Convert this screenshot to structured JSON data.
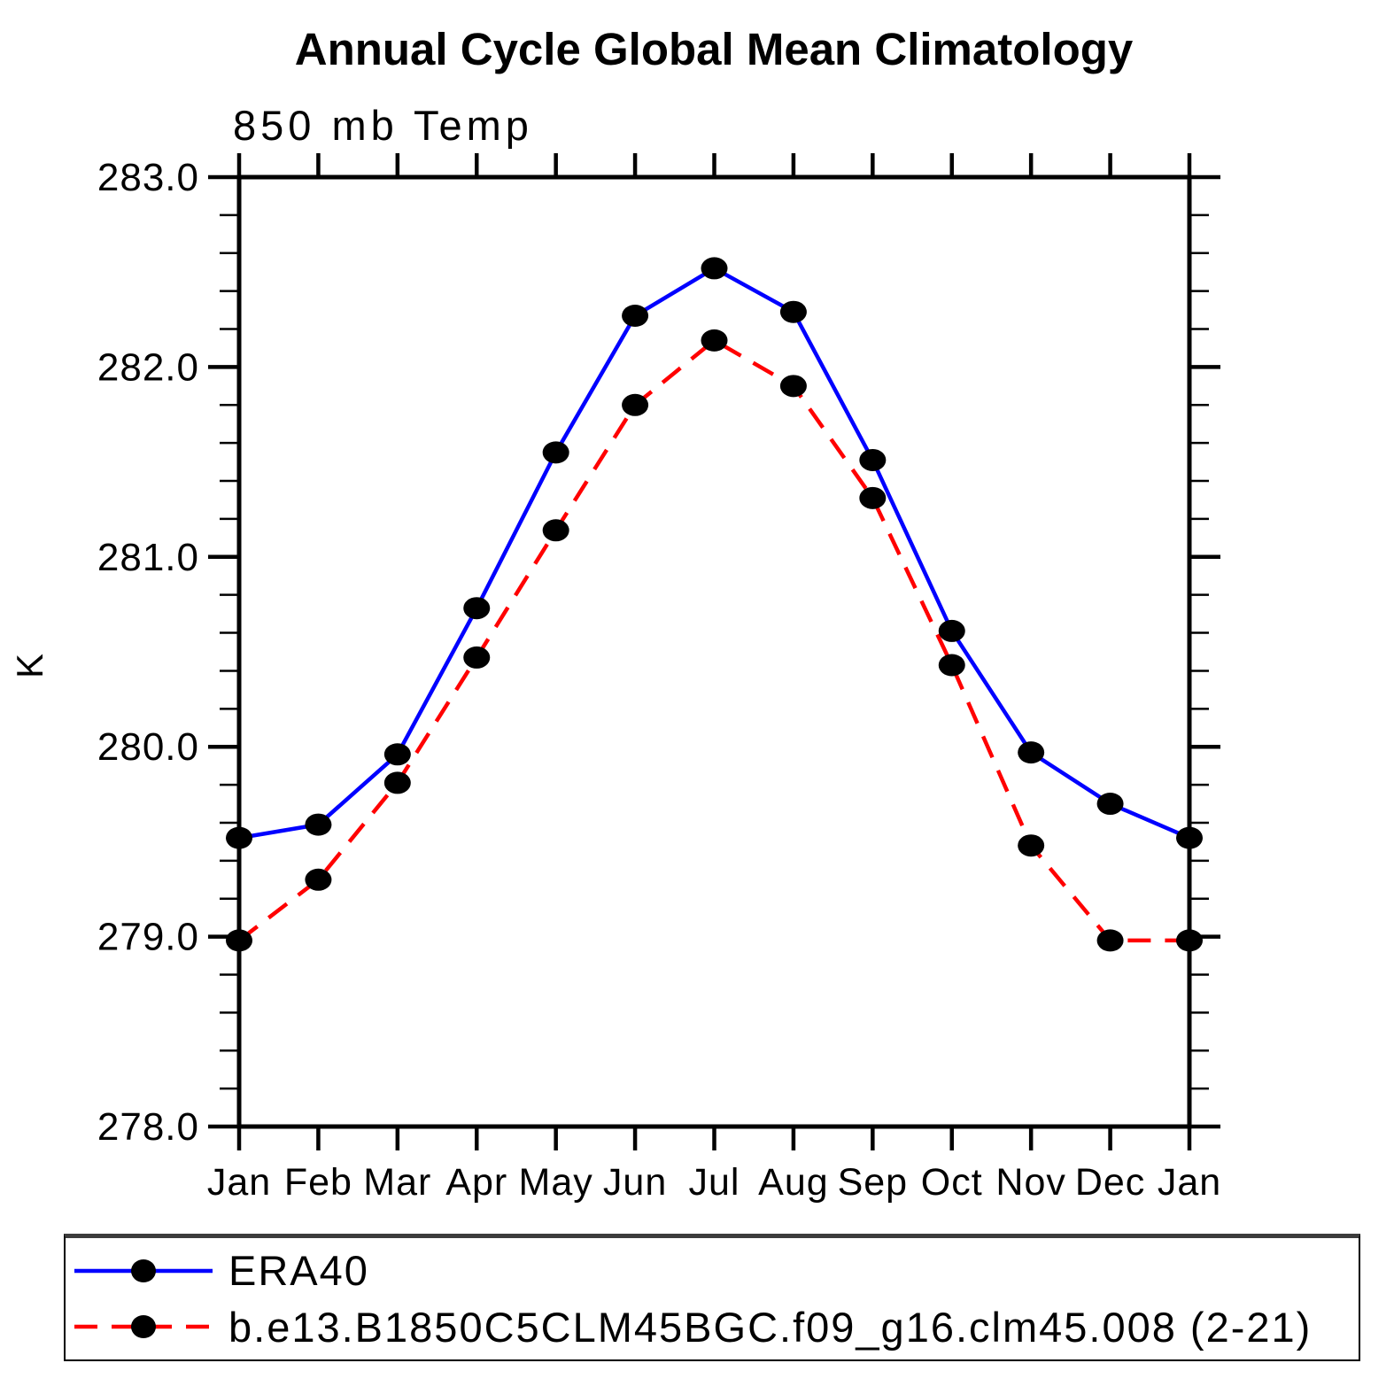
{
  "header": {
    "title": "Annual Cycle Global Mean Climatology",
    "subtitle": "850 mb Temp"
  },
  "chart_data": {
    "type": "line",
    "title": "Annual Cycle Global Mean Climatology",
    "subtitle": "850 mb Temp",
    "ylabel": "K",
    "xlabel": "",
    "ylim": [
      278.0,
      283.0
    ],
    "y_major_step": 1.0,
    "y_minor_step": 0.2,
    "y_tick_labels": [
      "278.0",
      "279.0",
      "280.0",
      "281.0",
      "282.0",
      "283.0"
    ],
    "categories": [
      "Jan",
      "Feb",
      "Mar",
      "Apr",
      "May",
      "Jun",
      "Jul",
      "Aug",
      "Sep",
      "Oct",
      "Nov",
      "Dec",
      "Jan"
    ],
    "grid": false,
    "legend_position": "bottom",
    "marker_color": "#000000",
    "axis_color": "#000000",
    "series": [
      {
        "name": "ERA40",
        "color": "#0000ff",
        "style": "solid",
        "marker": "filled-circle",
        "values": [
          279.52,
          279.59,
          279.96,
          280.73,
          281.55,
          282.27,
          282.52,
          282.29,
          281.51,
          280.61,
          279.97,
          279.7,
          279.52
        ]
      },
      {
        "name": "b.e13.B1850C5CLM45BGC.f09_g16.clm45.008 (2-21)",
        "color": "#ff0000",
        "style": "dashed",
        "marker": "filled-circle",
        "values": [
          278.98,
          279.3,
          279.81,
          280.47,
          281.14,
          281.8,
          282.14,
          281.9,
          281.31,
          280.43,
          279.48,
          278.98,
          278.98
        ]
      }
    ]
  },
  "legend": {
    "entries": [
      {
        "label": "ERA40"
      },
      {
        "label": "b.e13.B1850C5CLM45BGC.f09_g16.clm45.008 (2-21)"
      }
    ]
  }
}
